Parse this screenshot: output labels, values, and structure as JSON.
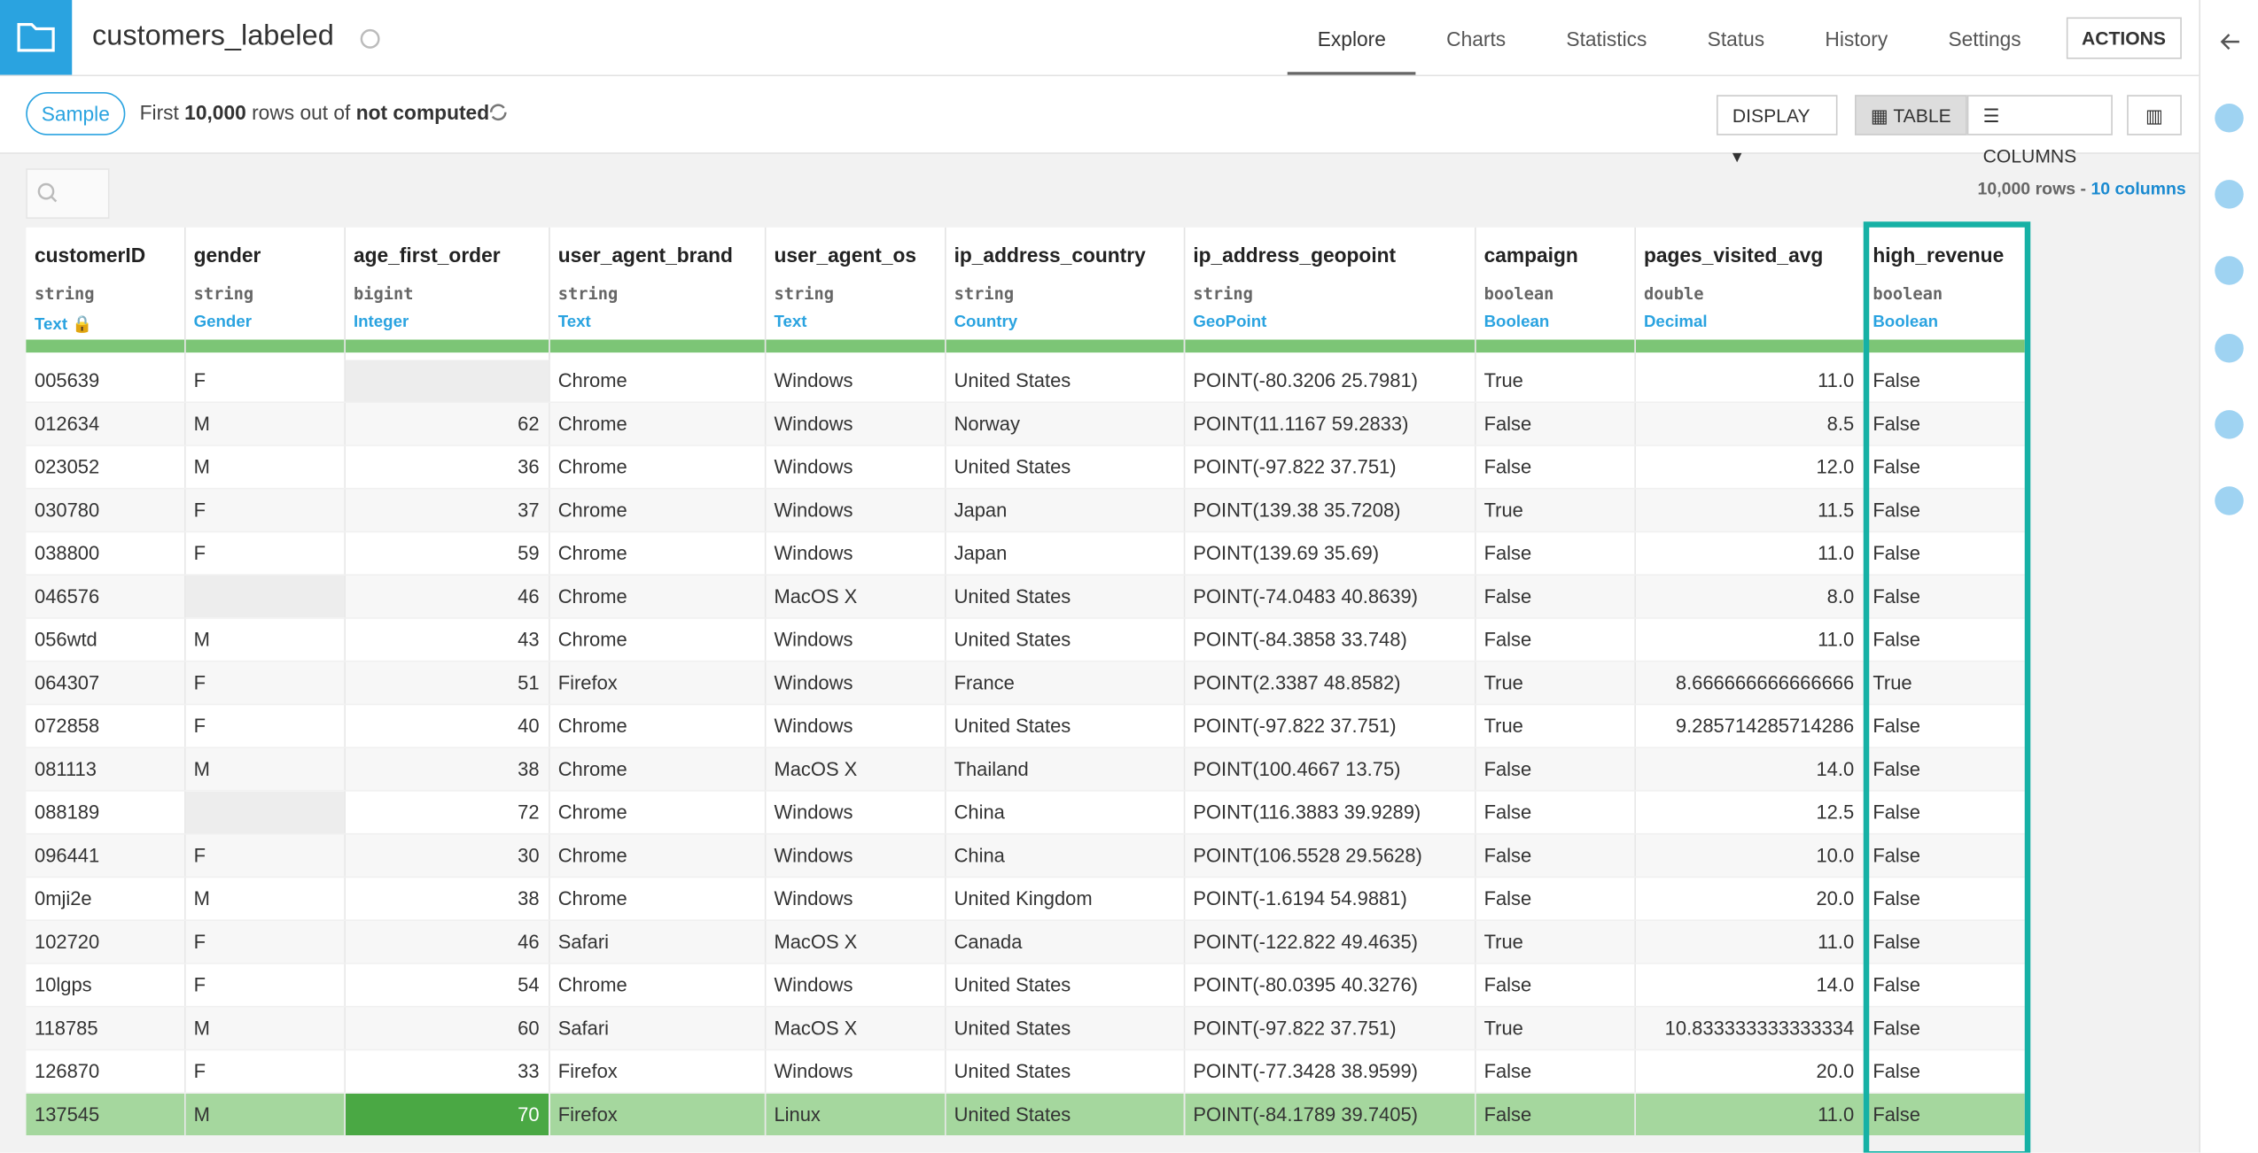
{
  "header": {
    "title": "customers_labeled",
    "tabs": [
      "Explore",
      "Charts",
      "Statistics",
      "Status",
      "History",
      "Settings"
    ],
    "action": "ACTIONS"
  },
  "toolbar": {
    "sample": "Sample",
    "info": [
      "First",
      "10,000",
      "rows out of",
      "not computed"
    ],
    "display": "DISPLAY",
    "table": "TABLE",
    "columns": "COLUMNS"
  },
  "summary": {
    "rows": "10,000 rows",
    "separator": "-",
    "columns": "10 columns"
  },
  "table": {
    "columns": [
      {
        "name": "customerID",
        "type": "string",
        "meaning": "Text"
      },
      {
        "name": "gender",
        "type": "string",
        "meaning": "Gender"
      },
      {
        "name": "age_first_order",
        "type": "bigint",
        "meaning": "Integer"
      },
      {
        "name": "user_agent_brand",
        "type": "string",
        "meaning": "Text"
      },
      {
        "name": "user_agent_os",
        "type": "string",
        "meaning": "Text"
      },
      {
        "name": "ip_address_country",
        "type": "string",
        "meaning": "Country"
      },
      {
        "name": "ip_address_geopoint",
        "type": "string",
        "meaning": "GeoPoint"
      },
      {
        "name": "campaign",
        "type": "boolean",
        "meaning": "Boolean"
      },
      {
        "name": "pages_visited_avg",
        "type": "double",
        "meaning": "Decimal"
      },
      {
        "name": "high_revenue",
        "type": "boolean",
        "meaning": "Boolean"
      }
    ],
    "rows": [
      [
        "005639",
        "F",
        null,
        "Chrome",
        "Windows",
        "United States",
        "POINT(-80.3206 25.7981)",
        "True",
        "11.0",
        "False"
      ],
      [
        "012634",
        "M",
        "62",
        "Chrome",
        "Windows",
        "Norway",
        "POINT(11.1167 59.2833)",
        "False",
        "8.5",
        "False"
      ],
      [
        "023052",
        "M",
        "36",
        "Chrome",
        "Windows",
        "United States",
        "POINT(-97.822 37.751)",
        "False",
        "12.0",
        "False"
      ],
      [
        "030780",
        "F",
        "37",
        "Chrome",
        "Windows",
        "Japan",
        "POINT(139.38 35.7208)",
        "True",
        "11.5",
        "False"
      ],
      [
        "038800",
        "F",
        "59",
        "Chrome",
        "Windows",
        "Japan",
        "POINT(139.69 35.69)",
        "False",
        "11.0",
        "False"
      ],
      [
        "046576",
        null,
        "46",
        "Chrome",
        "MacOS X",
        "United States",
        "POINT(-74.0483 40.8639)",
        "False",
        "8.0",
        "False"
      ],
      [
        "056wtd",
        "M",
        "43",
        "Chrome",
        "Windows",
        "United States",
        "POINT(-84.3858 33.748)",
        "False",
        "11.0",
        "False"
      ],
      [
        "064307",
        "F",
        "51",
        "Firefox",
        "Windows",
        "France",
        "POINT(2.3387 48.8582)",
        "True",
        "8.666666666666666",
        "True"
      ],
      [
        "072858",
        "F",
        "40",
        "Chrome",
        "Windows",
        "United States",
        "POINT(-97.822 37.751)",
        "True",
        "9.285714285714286",
        "False"
      ],
      [
        "081113",
        "M",
        "38",
        "Chrome",
        "MacOS X",
        "Thailand",
        "POINT(100.4667 13.75)",
        "False",
        "14.0",
        "False"
      ],
      [
        "088189",
        null,
        "72",
        "Chrome",
        "Windows",
        "China",
        "POINT(116.3883 39.9289)",
        "False",
        "12.5",
        "False"
      ],
      [
        "096441",
        "F",
        "30",
        "Chrome",
        "Windows",
        "China",
        "POINT(106.5528 29.5628)",
        "False",
        "10.0",
        "False"
      ],
      [
        "0mji2e",
        "M",
        "38",
        "Chrome",
        "Windows",
        "United Kingdom",
        "POINT(-1.6194 54.9881)",
        "False",
        "20.0",
        "False"
      ],
      [
        "102720",
        "F",
        "46",
        "Safari",
        "MacOS X",
        "Canada",
        "POINT(-122.822 49.4635)",
        "True",
        "11.0",
        "False"
      ],
      [
        "10lgps",
        "F",
        "54",
        "Chrome",
        "Windows",
        "United States",
        "POINT(-80.0395 40.3276)",
        "False",
        "14.0",
        "False"
      ],
      [
        "118785",
        "M",
        "60",
        "Safari",
        "MacOS X",
        "United States",
        "POINT(-97.822 37.751)",
        "True",
        "10.833333333333334",
        "False"
      ],
      [
        "126870",
        "F",
        "33",
        "Firefox",
        "Windows",
        "United States",
        "POINT(-77.3428 38.9599)",
        "False",
        "20.0",
        "False"
      ],
      [
        "137545",
        "M",
        "70",
        "Firefox",
        "Linux",
        "United States",
        "POINT(-84.1789 39.7405)",
        "False",
        "11.0",
        "False"
      ]
    ]
  }
}
